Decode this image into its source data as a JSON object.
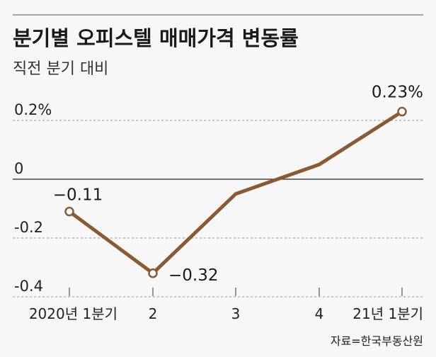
{
  "chart_data": {
    "type": "line",
    "title": "분기별 오피스텔 매매가격 변동률",
    "subtitle": "직전 분기 대비",
    "source": "자료=한국부동산원",
    "categories": [
      "2020년 1분기",
      "2",
      "3",
      "4",
      "21년 1분기"
    ],
    "values": [
      -0.11,
      -0.32,
      -0.05,
      0.05,
      0.23
    ],
    "data_labels": [
      "-0.11",
      "-0.32",
      "",
      "",
      "0.23%"
    ],
    "y_ticks": [
      0.2,
      0,
      -0.2,
      -0.4
    ],
    "y_tick_labels": [
      "0.2%",
      "0",
      "-0.2",
      "-0.4"
    ],
    "ylim": [
      -0.4,
      0.2
    ],
    "xlabel": "",
    "ylabel": "",
    "grid": true,
    "line_color": "#8a5a34"
  }
}
